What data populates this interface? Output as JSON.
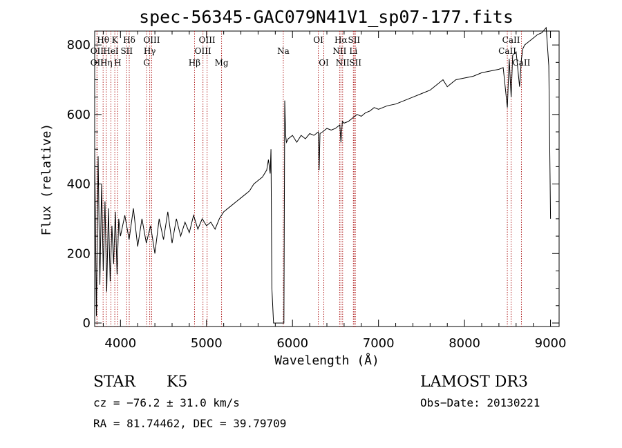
{
  "chart_data": {
    "type": "line",
    "title": "spec-56345-GAC079N41V1_sp07-177.fits",
    "xlabel": "Wavelength (Å)",
    "ylabel": "Flux (relative)",
    "xlim": [
      3700,
      9100
    ],
    "ylim": [
      -10,
      840
    ],
    "xticks": [
      4000,
      5000,
      6000,
      7000,
      8000,
      9000
    ],
    "xtick_labels": [
      "4000",
      "5000",
      "6000",
      "7000",
      "8000",
      "9000"
    ],
    "yticks": [
      0,
      200,
      400,
      600,
      800
    ],
    "ytick_labels": [
      "0",
      "200",
      "400",
      "600",
      "800"
    ],
    "series": [
      {
        "name": "flux",
        "color": "#000000",
        "x": [
          3700,
          3720,
          3740,
          3760,
          3780,
          3800,
          3820,
          3840,
          3860,
          3880,
          3900,
          3920,
          3940,
          3960,
          3980,
          4000,
          4050,
          4100,
          4150,
          4200,
          4250,
          4300,
          4350,
          4400,
          4450,
          4500,
          4550,
          4600,
          4650,
          4700,
          4750,
          4800,
          4850,
          4900,
          4950,
          5000,
          5050,
          5100,
          5150,
          5200,
          5250,
          5300,
          5350,
          5400,
          5450,
          5500,
          5550,
          5600,
          5650,
          5700,
          5720,
          5740,
          5750,
          5760,
          5780,
          5800,
          5820,
          5840,
          5860,
          5880,
          5890,
          5900,
          5910,
          5920,
          5930,
          5950,
          6000,
          6050,
          6100,
          6150,
          6200,
          6250,
          6300,
          6310,
          6320,
          6350,
          6400,
          6450,
          6500,
          6550,
          6563,
          6580,
          6600,
          6650,
          6700,
          6750,
          6800,
          6850,
          6900,
          6950,
          7000,
          7100,
          7200,
          7300,
          7400,
          7500,
          7600,
          7700,
          7750,
          7800,
          7850,
          7900,
          8000,
          8100,
          8200,
          8300,
          8400,
          8450,
          8498,
          8520,
          8542,
          8560,
          8600,
          8640,
          8662,
          8680,
          8700,
          8750,
          8800,
          8850,
          8900,
          8950,
          8980,
          9000
        ],
        "y": [
          500,
          20,
          480,
          110,
          400,
          150,
          350,
          90,
          330,
          120,
          280,
          170,
          320,
          140,
          300,
          250,
          310,
          240,
          330,
          220,
          300,
          230,
          280,
          200,
          300,
          240,
          320,
          230,
          300,
          250,
          290,
          260,
          310,
          270,
          300,
          280,
          290,
          270,
          300,
          320,
          330,
          340,
          350,
          360,
          370,
          380,
          400,
          410,
          420,
          440,
          470,
          430,
          500,
          100,
          0,
          0,
          0,
          0,
          0,
          0,
          0,
          0,
          640,
          540,
          520,
          530,
          540,
          520,
          540,
          530,
          545,
          540,
          550,
          440,
          545,
          550,
          560,
          555,
          560,
          570,
          520,
          580,
          575,
          580,
          590,
          600,
          595,
          605,
          610,
          620,
          615,
          625,
          630,
          640,
          650,
          660,
          670,
          690,
          700,
          680,
          690,
          700,
          705,
          710,
          720,
          725,
          730,
          735,
          620,
          760,
          650,
          770,
          780,
          680,
          760,
          790,
          800,
          810,
          820,
          830,
          835,
          850,
          740,
          300
        ]
      }
    ],
    "lines": [
      {
        "name": "OII",
        "wavelength": 3727,
        "row": 2
      },
      {
        "name": "OII",
        "wavelength": 3727,
        "row": 3
      },
      {
        "name": "Hθ",
        "wavelength": 3798,
        "row": 1
      },
      {
        "name": "Hη",
        "wavelength": 3835,
        "row": 3
      },
      {
        "name": "HeI",
        "wavelength": 3889,
        "row": 2
      },
      {
        "name": "K",
        "wavelength": 3934,
        "row": 1
      },
      {
        "name": "H",
        "wavelength": 3968,
        "row": 3
      },
      {
        "name": "SII",
        "wavelength": 4072,
        "row": 2
      },
      {
        "name": "Hδ",
        "wavelength": 4102,
        "row": 1
      },
      {
        "name": "OIII",
        "wavelength": 4363,
        "row": 1
      },
      {
        "name": "Hγ",
        "wavelength": 4340,
        "row": 2
      },
      {
        "name": "G",
        "wavelength": 4304,
        "row": 3
      },
      {
        "name": "Hβ",
        "wavelength": 4861,
        "row": 3
      },
      {
        "name": "OIII",
        "wavelength": 4959,
        "row": 2
      },
      {
        "name": "OIII",
        "wavelength": 5007,
        "row": 1
      },
      {
        "name": "Mg",
        "wavelength": 5175,
        "row": 3
      },
      {
        "name": "Na",
        "wavelength": 5893,
        "row": 2
      },
      {
        "name": "OI",
        "wavelength": 6300,
        "row": 1
      },
      {
        "name": "OI",
        "wavelength": 6364,
        "row": 3
      },
      {
        "name": "NII",
        "wavelength": 6548,
        "row": 2
      },
      {
        "name": "Hα",
        "wavelength": 6563,
        "row": 1
      },
      {
        "name": "NII",
        "wavelength": 6583,
        "row": 3
      },
      {
        "name": "SII",
        "wavelength": 6716,
        "row": 1
      },
      {
        "name": "Li",
        "wavelength": 6708,
        "row": 2
      },
      {
        "name": "SII",
        "wavelength": 6731,
        "row": 3
      },
      {
        "name": "CaII",
        "wavelength": 8498,
        "row": 2
      },
      {
        "name": "CaII",
        "wavelength": 8542,
        "row": 1
      },
      {
        "name": "CaII",
        "wavelength": 8662,
        "row": 3
      }
    ],
    "line_color": "#b22222"
  },
  "info": {
    "object_class": "STAR",
    "subclass": "K5",
    "survey": "LAMOST DR3",
    "cz": "cz = −76.2 ± 31.0 km/s",
    "obs_date": "Obs−Date: 20130221",
    "coords": "RA =  81.74462, DEC =  39.79709"
  }
}
